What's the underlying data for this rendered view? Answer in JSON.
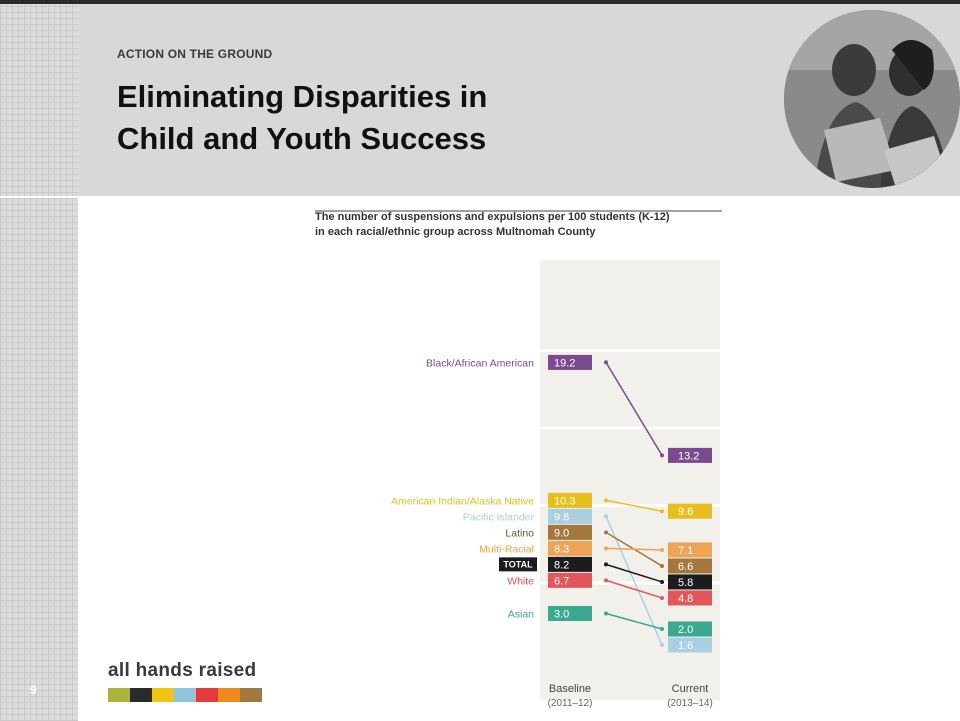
{
  "slide": {
    "kicker": "ACTION ON THE GROUND",
    "title_line1": "Eliminating Disparities in",
    "title_line2": "Child and Youth Success",
    "page_number": "9",
    "brand": {
      "name": "all hands raised",
      "bar_colors": [
        "#a9b43a",
        "#2b2b2b",
        "#f1c40f",
        "#8fc6dd",
        "#e23b3b",
        "#f08a1c",
        "#a2783e"
      ]
    }
  },
  "chart_data": {
    "type": "slope",
    "title": "The number of suspensions and expulsions per 100 students (K-12) in each racial/ethnic group across Multnomah County",
    "title_lines": [
      "The number of suspensions and expulsions per 100 students (K-12)",
      "in each racial/ethnic group across Multnomah County"
    ],
    "columns": [
      {
        "label": "Baseline",
        "period": "(2011–12)"
      },
      {
        "label": "Current",
        "period": "(2013–14)"
      }
    ],
    "series": [
      {
        "name": "Black/African American",
        "baseline": 19.2,
        "current": 13.2,
        "color": "#7a4b8c"
      },
      {
        "name": "American Indian/Alaska Native",
        "baseline": 10.3,
        "current": 9.6,
        "color": "#e6be1e"
      },
      {
        "name": "Pacific Islander",
        "baseline": 9.8,
        "current": 1.6,
        "color": "#a9cfe0"
      },
      {
        "name": "Latino",
        "baseline": 9.0,
        "current": 6.6,
        "color": "#a2783e"
      },
      {
        "name": "Multi-Racial",
        "baseline": 8.3,
        "current": 7.1,
        "color": "#eda456"
      },
      {
        "name": "TOTAL",
        "baseline": 8.2,
        "current": 5.8,
        "color": "#1c1c1c"
      },
      {
        "name": "White",
        "baseline": 6.7,
        "current": 4.8,
        "color": "#e2575a"
      },
      {
        "name": "Asian",
        "baseline": 3.0,
        "current": 2.0,
        "color": "#3aa98f"
      }
    ]
  }
}
